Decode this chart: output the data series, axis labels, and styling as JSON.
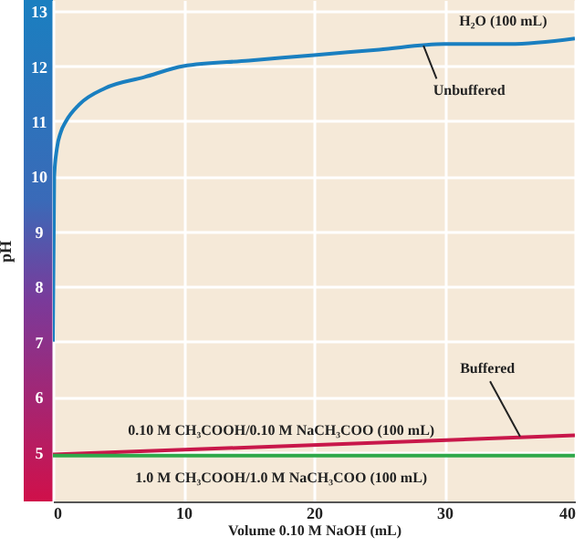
{
  "chart_data": {
    "type": "line",
    "xlabel": "Volume 0.10 M NaOH (mL)",
    "ylabel": "pH",
    "xlim": [
      0,
      40
    ],
    "xticks": [
      0,
      10,
      20,
      30,
      40
    ],
    "ylim": [
      4.1,
      13.2
    ],
    "yticks": [
      5,
      6,
      7,
      8,
      9,
      10,
      11,
      12,
      13
    ],
    "grid": true,
    "marker": "none",
    "line_style": "solid",
    "series": [
      {
        "name": "H₂O (100 mL)",
        "color": "#1a7fc0",
        "x": [
          0,
          0.1,
          0.3,
          0.6,
          1,
          2,
          4,
          7,
          10,
          15,
          20,
          25,
          30,
          35,
          40
        ],
        "values": [
          7.0,
          10.0,
          10.5,
          10.8,
          11.0,
          11.3,
          11.6,
          11.8,
          12.0,
          12.1,
          12.2,
          12.3,
          12.4,
          12.4,
          12.5
        ]
      },
      {
        "name": "0.10 M CH₃COOH/0.10 M NaCH₃COO (100 mL)",
        "color": "#c8174a",
        "x": [
          0,
          40
        ],
        "values": [
          4.95,
          5.3
        ]
      },
      {
        "name": "1.0 M CH₃COOH/1.0 M NaCH₃COO (100 mL)",
        "color": "#2ea84a",
        "x": [
          0,
          40
        ],
        "values": [
          4.93,
          4.93
        ]
      }
    ],
    "annotations": [
      {
        "text": "Unbuffered",
        "x": 28.4,
        "y": 12.37
      },
      {
        "text": "Buffered",
        "x": 35.8,
        "y": 5.28
      }
    ]
  }
}
